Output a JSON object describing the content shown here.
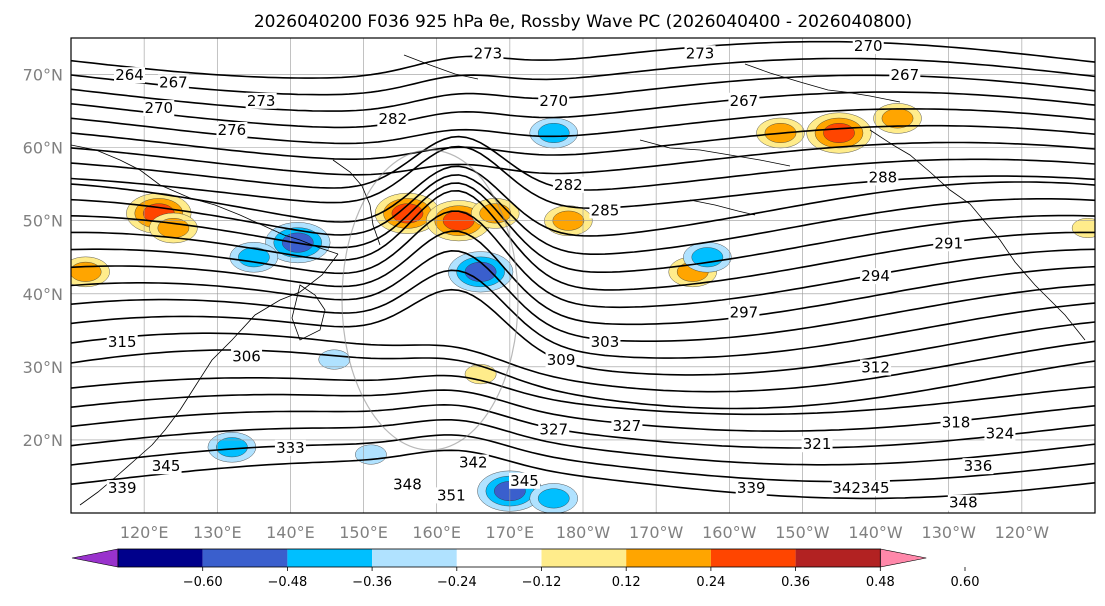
{
  "title": "2026040200 F036 925 hPa θe, Rossby Wave PC (2026040400 - 2026040800)",
  "map": {
    "lon_range": [
      110,
      250
    ],
    "lat_range": [
      10,
      75
    ],
    "lat_labels": [
      "70°N",
      "60°N",
      "50°N",
      "40°N",
      "30°N",
      "20°N"
    ],
    "lat_values": [
      70,
      60,
      50,
      40,
      30,
      20
    ],
    "lon_labels": [
      "120°E",
      "130°E",
      "140°E",
      "150°E",
      "160°E",
      "170°E",
      "180°W",
      "170°W",
      "160°W",
      "150°W",
      "140°W",
      "130°W",
      "120°W"
    ],
    "lon_values": [
      120,
      130,
      140,
      150,
      160,
      170,
      180,
      190,
      200,
      210,
      220,
      230,
      240
    ],
    "contour_labels": [
      {
        "text": "273",
        "lon": 167,
        "lat": 72.5
      },
      {
        "text": "273",
        "lon": 196,
        "lat": 72.5
      },
      {
        "text": "270",
        "lon": 219,
        "lat": 73.5
      },
      {
        "text": "267",
        "lon": 224,
        "lat": 69.5
      },
      {
        "text": "264",
        "lon": 118,
        "lat": 69.5
      },
      {
        "text": "267",
        "lon": 124,
        "lat": 68.5
      },
      {
        "text": "270",
        "lon": 122,
        "lat": 65
      },
      {
        "text": "273",
        "lon": 136,
        "lat": 66
      },
      {
        "text": "270",
        "lon": 176,
        "lat": 66
      },
      {
        "text": "282",
        "lon": 154,
        "lat": 63.5
      },
      {
        "text": "276",
        "lon": 132,
        "lat": 62
      },
      {
        "text": "267",
        "lon": 202,
        "lat": 66
      },
      {
        "text": "282",
        "lon": 178,
        "lat": 54.5
      },
      {
        "text": "285",
        "lon": 183,
        "lat": 51
      },
      {
        "text": "288",
        "lon": 221,
        "lat": 55.5
      },
      {
        "text": "291",
        "lon": 230,
        "lat": 46.5
      },
      {
        "text": "294",
        "lon": 220,
        "lat": 42
      },
      {
        "text": "297",
        "lon": 202,
        "lat": 37
      },
      {
        "text": "303",
        "lon": 183,
        "lat": 33
      },
      {
        "text": "309",
        "lon": 177,
        "lat": 30.5
      },
      {
        "text": "312",
        "lon": 220,
        "lat": 29.5
      },
      {
        "text": "306",
        "lon": 134,
        "lat": 31
      },
      {
        "text": "315",
        "lon": 117,
        "lat": 33
      },
      {
        "text": "327",
        "lon": 186,
        "lat": 21.5
      },
      {
        "text": "327",
        "lon": 176,
        "lat": 21
      },
      {
        "text": "333",
        "lon": 140,
        "lat": 18.5
      },
      {
        "text": "342",
        "lon": 165,
        "lat": 16.5
      },
      {
        "text": "348",
        "lon": 156,
        "lat": 13.5
      },
      {
        "text": "345",
        "lon": 123,
        "lat": 16
      },
      {
        "text": "339",
        "lon": 117,
        "lat": 13
      },
      {
        "text": "351",
        "lon": 162,
        "lat": 12
      },
      {
        "text": "345",
        "lon": 172,
        "lat": 14
      },
      {
        "text": "339",
        "lon": 203,
        "lat": 13
      },
      {
        "text": "336",
        "lon": 234,
        "lat": 16
      },
      {
        "text": "324",
        "lon": 237,
        "lat": 20.5
      },
      {
        "text": "318",
        "lon": 231,
        "lat": 22
      },
      {
        "text": "321",
        "lon": 212,
        "lat": 19
      },
      {
        "text": "342345",
        "lon": 218,
        "lat": 13
      },
      {
        "text": "348",
        "lon": 232,
        "lat": 11
      }
    ]
  },
  "colorbar": {
    "ticks": [
      "−0.60",
      "−0.48",
      "−0.36",
      "−0.24",
      "−0.12",
      "0.12",
      "0.24",
      "0.36",
      "0.48",
      "0.60"
    ],
    "colors": [
      "#9932cc",
      "#00008b",
      "#3a5fcd",
      "#00bfff",
      "#b0e2ff",
      "#ffffff",
      "#ffec8b",
      "#ffa500",
      "#ff4500",
      "#b22222",
      "#ff88aa"
    ]
  },
  "pc_anomalies": [
    {
      "lon": 122,
      "lat": 51,
      "level": 3
    },
    {
      "lon": 124,
      "lat": 49,
      "level": 2
    },
    {
      "lon": 156,
      "lat": 51,
      "level": 3
    },
    {
      "lon": 163,
      "lat": 50,
      "level": 3
    },
    {
      "lon": 168,
      "lat": 51,
      "level": 2
    },
    {
      "lon": 178,
      "lat": 50,
      "level": 2
    },
    {
      "lon": 112,
      "lat": 43,
      "level": 2
    },
    {
      "lon": 215,
      "lat": 62,
      "level": 3
    },
    {
      "lon": 207,
      "lat": 62,
      "level": 2
    },
    {
      "lon": 223,
      "lat": 64,
      "level": 2
    },
    {
      "lon": 195,
      "lat": 43,
      "level": 2
    },
    {
      "lon": 166,
      "lat": 29,
      "level": 1
    },
    {
      "lon": 249,
      "lat": 49,
      "level": 1
    },
    {
      "lon": 166,
      "lat": 43,
      "level": -3
    },
    {
      "lon": 141,
      "lat": 47,
      "level": -3
    },
    {
      "lon": 135,
      "lat": 45,
      "level": -2
    },
    {
      "lon": 176,
      "lat": 62,
      "level": -2
    },
    {
      "lon": 170,
      "lat": 13,
      "level": -3
    },
    {
      "lon": 176,
      "lat": 12,
      "level": -2
    },
    {
      "lon": 132,
      "lat": 19,
      "level": -2
    },
    {
      "lon": 151,
      "lat": 18,
      "level": -1
    },
    {
      "lon": 197,
      "lat": 45,
      "level": -2
    },
    {
      "lon": 146,
      "lat": 31,
      "level": -1
    }
  ]
}
